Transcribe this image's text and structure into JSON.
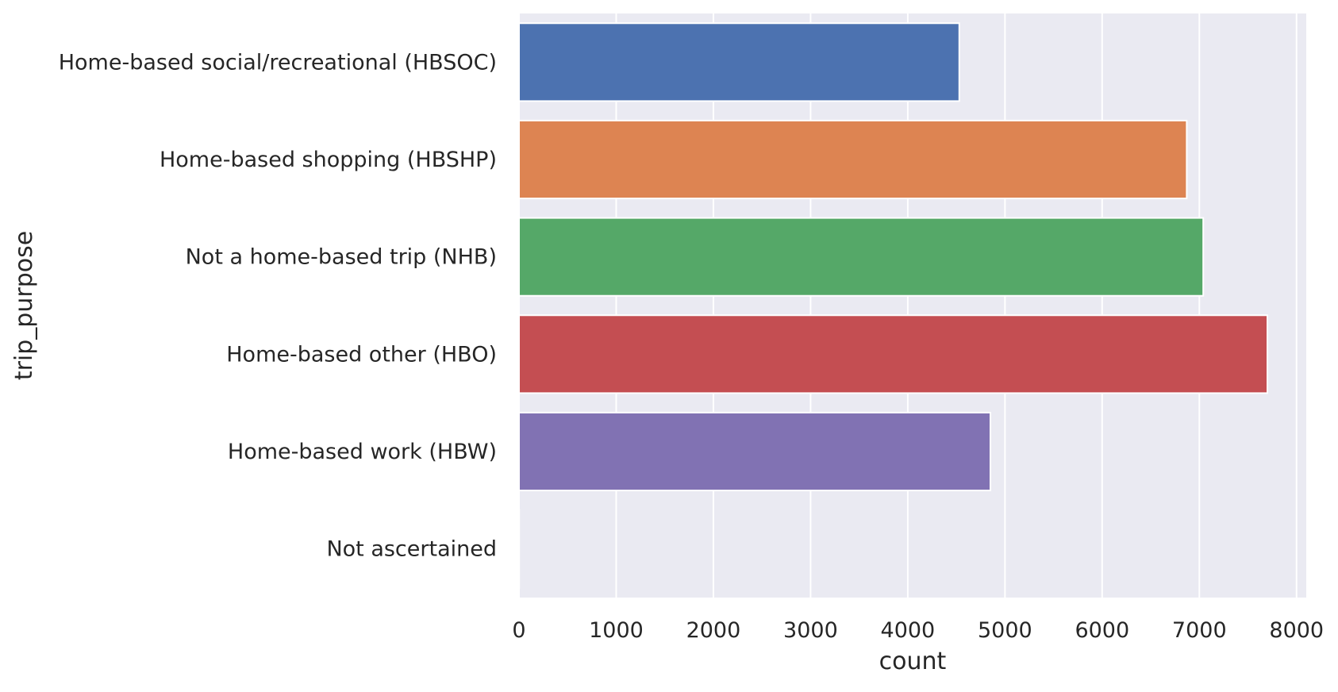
{
  "chart_data": {
    "type": "bar",
    "orientation": "horizontal",
    "title": "",
    "xlabel": "count",
    "ylabel": "trip_purpose",
    "categories": [
      "Home-based social/recreational (HBSOC)",
      "Home-based shopping (HBSHP)",
      "Not a home-based trip (NHB)",
      "Home-based other (HBO)",
      "Home-based work (HBW)",
      "Not ascertained"
    ],
    "values": [
      4530,
      6870,
      7040,
      7700,
      4850,
      2
    ],
    "colors": [
      "#4c72b0",
      "#dd8452",
      "#55a868",
      "#c44e52",
      "#8172b3",
      "#937860"
    ],
    "xlim": [
      0,
      8100
    ],
    "xticks": [
      0,
      1000,
      2000,
      3000,
      4000,
      5000,
      6000,
      7000,
      8000
    ],
    "xtick_labels": [
      "0",
      "1000",
      "2000",
      "3000",
      "4000",
      "5000",
      "6000",
      "7000",
      "8000"
    ],
    "grid": true,
    "legend": "none",
    "style": {
      "plot_background": "#eaeaf2",
      "grid_color": "#ffffff"
    }
  }
}
